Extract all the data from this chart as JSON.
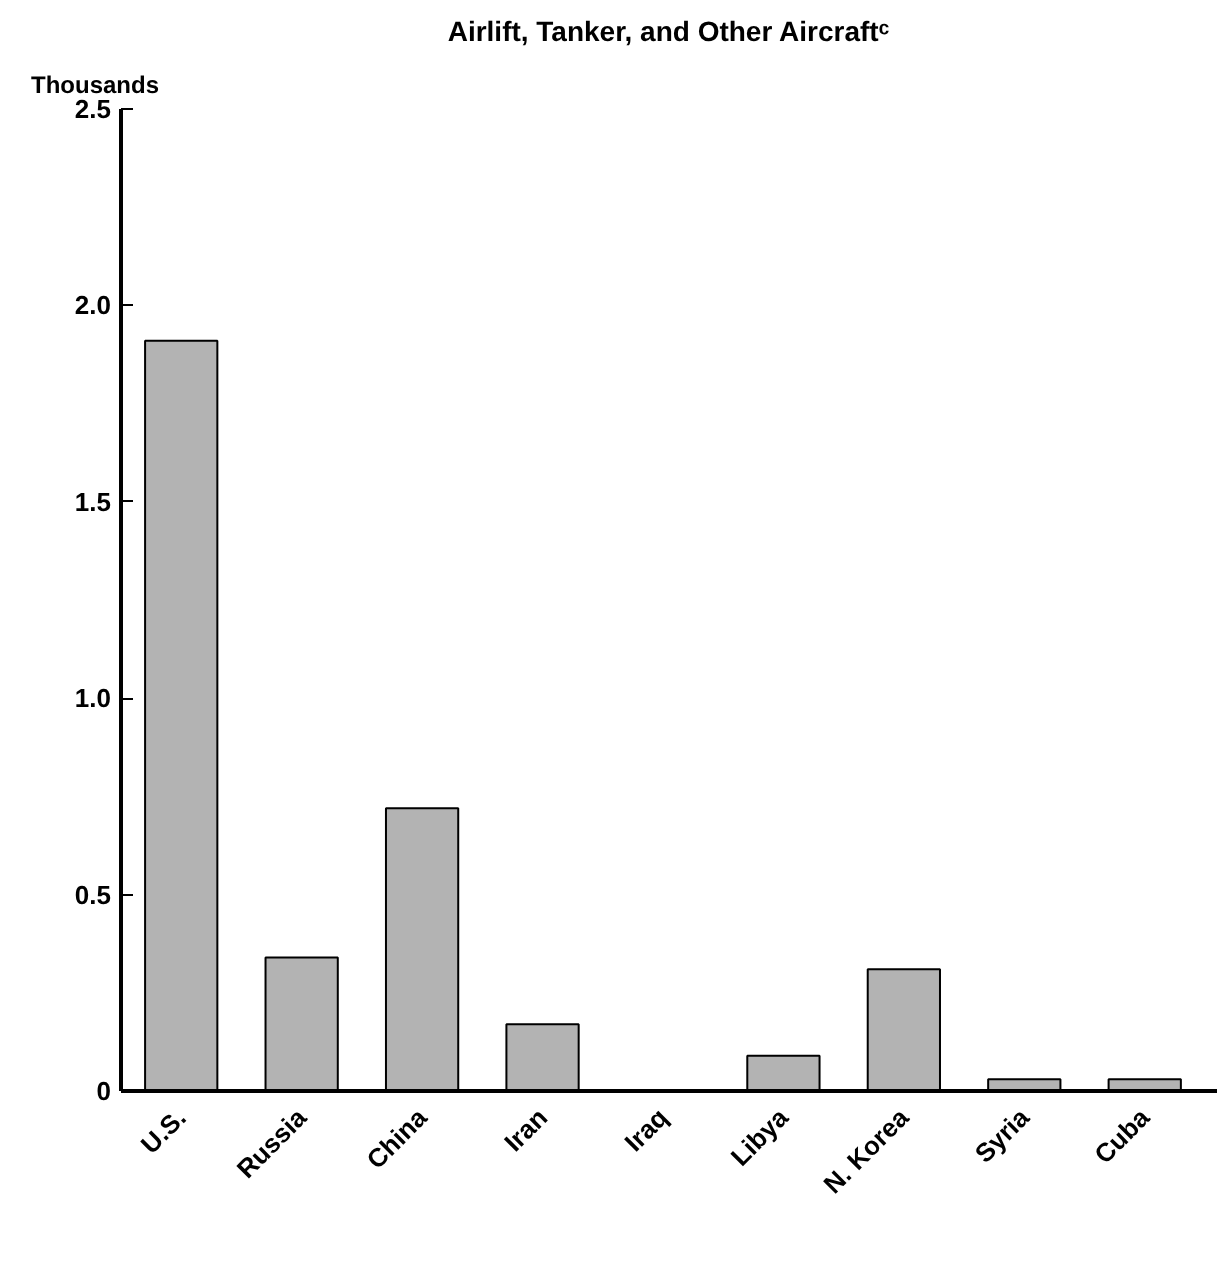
{
  "chart_data": {
    "type": "bar",
    "title": "Airlift, Tanker, and Other Aircraftᶜ",
    "ylabel": "Thousands",
    "categories": [
      "U.S.",
      "Russia",
      "China",
      "Iran",
      "Iraq",
      "Libya",
      "N. Korea",
      "Syria",
      "Cuba"
    ],
    "values": [
      1.91,
      0.34,
      0.72,
      0.17,
      0,
      0.09,
      0.31,
      0.03,
      0.03
    ],
    "color": "#b3b3b3",
    "ylim": [
      0,
      2.5
    ],
    "yticks": [
      {
        "value": 0,
        "label": "0"
      },
      0.5,
      {
        "value": 1,
        "label": "1.0"
      },
      1.5,
      {
        "value": 2,
        "label": "2.0"
      },
      2.5
    ],
    "grid": false
  }
}
